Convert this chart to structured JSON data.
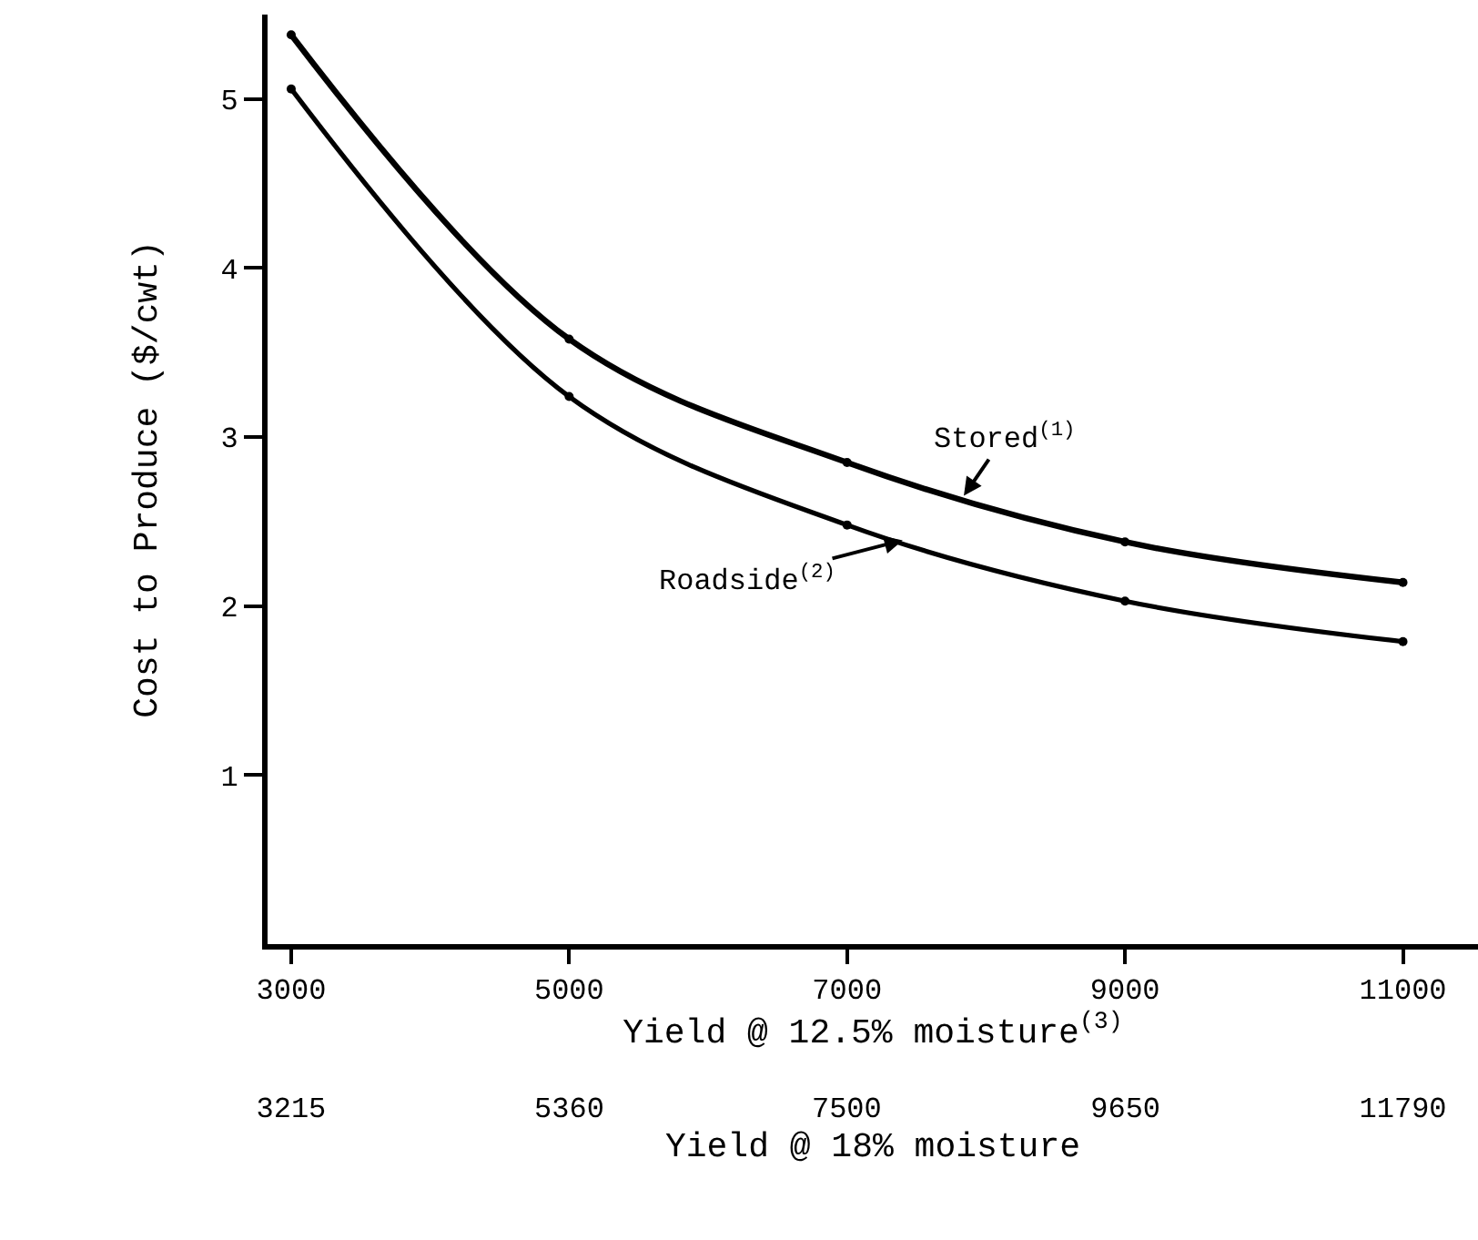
{
  "chart_data": {
    "type": "line",
    "xlabel": "Yield @ 12.5% moisture$^{(3)}$",
    "x2label": "Yield @ 18% moisture",
    "ylabel": "Cost to Produce ($/cwt)",
    "x": [
      3000,
      5000,
      7000,
      9000,
      11000
    ],
    "series": [
      {
        "name": "Stored$^{(1)}$",
        "color": "#000000",
        "values": [
          5.38,
          3.58,
          2.85,
          2.38,
          2.14
        ]
      },
      {
        "name": "Roadside$^{(2)}$",
        "color": "#000000",
        "values": [
          5.06,
          3.24,
          2.48,
          2.03,
          1.79
        ]
      }
    ],
    "xlim": [
      2830,
      11540
    ],
    "xticks": [
      3000,
      5000,
      7000,
      9000,
      11000
    ],
    "x2lim": [
      3033,
      12369
    ],
    "x2ticks": [
      3215,
      5360,
      7500,
      9650,
      11790
    ],
    "ylim": [
      0,
      5.5
    ],
    "yticks": [
      1,
      2,
      3,
      4,
      5
    ],
    "marker": "circle",
    "line_style": "solid"
  }
}
